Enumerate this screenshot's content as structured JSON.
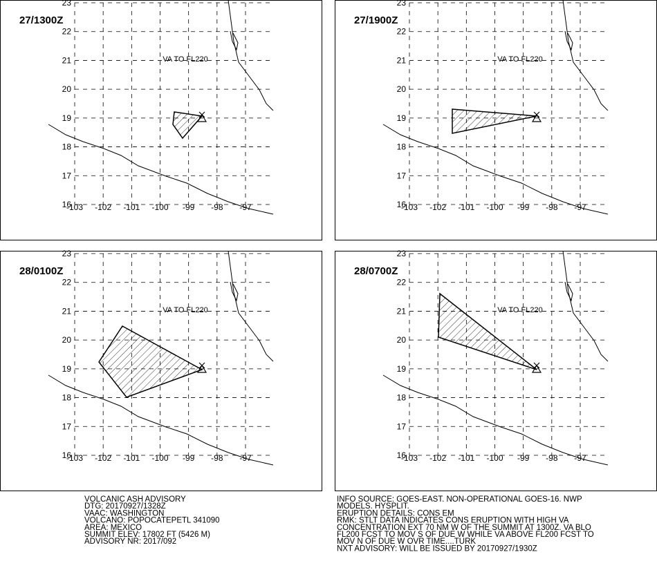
{
  "panels": [
    {
      "time": "27/1300Z",
      "label": "VA TO FL220"
    },
    {
      "time": "27/1900Z",
      "label": "VA TO FL220"
    },
    {
      "time": "28/0100Z",
      "label": "VA TO FL220"
    },
    {
      "time": "28/0700Z",
      "label": "VA TO FL220"
    }
  ],
  "lat_ticks": [
    16,
    17,
    18,
    19,
    20,
    21,
    22,
    23
  ],
  "lon_ticks": [
    -103,
    -102,
    -101,
    -100,
    -99,
    -98,
    -97
  ],
  "advisory_left": [
    "VOLCANIC ASH ADVISORY",
    "DTG: 20170927/1328Z",
    "VAAC: WASHINGTON",
    "VOLCANO: POPOCATEPETL 341090",
    "AREA: MEXICO",
    "SUMMIT ELEV: 17802 FT (5426 M)",
    "ADVISORY NR: 2017/092"
  ],
  "advisory_right": [
    "INFO SOURCE: GOES-EAST. NON-OPERATIONAL GOES-16. NWP",
    "MODELS. HYSPLIT.",
    "ERUPTION DETAILS: CONS EM",
    "RMK: STLT DATA INDICATES CONS ERUPTION WITH HIGH VA",
    "CONCENTRATION EXT 70 NM W OF THE SUMMIT AT 1300Z. VA BLO",
    "FL200 FCST TO MOV S OF DUE W WHILE VA ABOVE FL200 FCST TO",
    "MOV N OF DUE W OVR TIME....TURK",
    "NXT ADVISORY: WILL BE ISSUED BY 20170927/1930Z"
  ]
}
